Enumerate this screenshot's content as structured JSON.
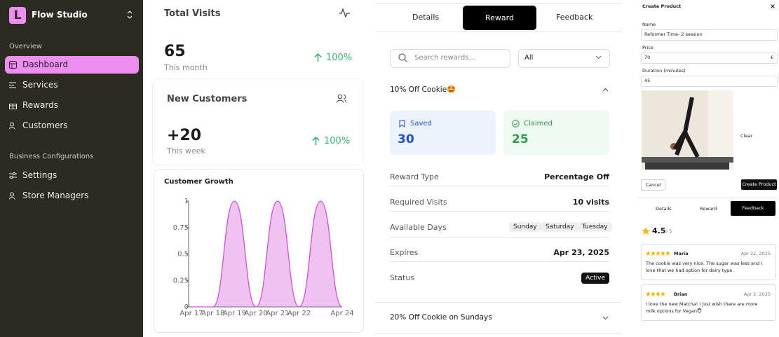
{
  "sidebar": {
    "logo": "L",
    "brand": "Flow Studio",
    "sections": [
      {
        "title": "Overview",
        "items": [
          "Dashboard",
          "Services",
          "Rewards",
          "Customers"
        ]
      },
      {
        "title": "Business Configurations",
        "items": [
          "Settings",
          "Store Managers"
        ]
      }
    ]
  },
  "stats": [
    {
      "title": "Total Visits",
      "value": "65",
      "period": "This month",
      "change": "100%"
    },
    {
      "title": "New Customers",
      "value": "+20",
      "period": "This week",
      "change": "100%"
    }
  ],
  "chart_data": {
    "type": "area",
    "title": "Customer Growth",
    "categories": [
      "Apr 17",
      "Apr 18",
      "Apr 19",
      "Apr 20",
      "Apr 21",
      "Apr 22",
      null,
      "Apr 24"
    ],
    "values": [
      0,
      0,
      1,
      0,
      1,
      0,
      1,
      0
    ],
    "color": "#d04fd6",
    "ylim": [
      0,
      1
    ],
    "yticks": [
      0,
      0.25,
      0.5,
      0.75,
      1
    ]
  },
  "reward_panel": {
    "tabs": [
      "Details",
      "Reward",
      "Feedback"
    ],
    "search_placeholder": "Search rewards...",
    "filter": "All",
    "rewards": [
      {
        "name": "10% Off Cookie🤩",
        "saved_label": "Saved",
        "saved": "30",
        "claimed_label": "Claimed",
        "claimed": "25",
        "details": [
          {
            "label": "Reward Type",
            "value": "Percentage Off"
          },
          {
            "label": "Required Visits",
            "value": "10 visits"
          },
          {
            "label": "Available Days",
            "days": [
              "Sunday",
              "Saturday",
              "Tuesday"
            ]
          },
          {
            "label": "Expires",
            "value": "Apr 23, 2025"
          },
          {
            "label": "Status",
            "value": "Active"
          }
        ]
      },
      {
        "name": "20% Off Cookie on Sundays"
      }
    ]
  },
  "create_product": {
    "title": "Create Product",
    "fields": [
      {
        "label": "Name",
        "value": "Reformer Time- 2 session"
      },
      {
        "label": "Price",
        "value": "70",
        "unit": "€"
      },
      {
        "label": "Duration (minutes)",
        "value": "45"
      }
    ],
    "clear": "Clear",
    "cancel": "Cancel",
    "submit": "Create Product"
  },
  "feedback_panel": {
    "tabs": [
      "Details",
      "Reward",
      "Feedback"
    ],
    "rating": "4.5",
    "rating_max": "/ 5",
    "reviews": [
      {
        "stars": 5,
        "author": "Maria",
        "date": "Apr 22, 2025",
        "text": "The cookie was very nice. The sugar was less and I love that we had option for dairy type."
      },
      {
        "stars": 4,
        "author": "Brian",
        "date": "Apr 2, 2025",
        "text": "I love the new Matcha! I just wish there are more milk options for Vegan😇"
      }
    ]
  }
}
